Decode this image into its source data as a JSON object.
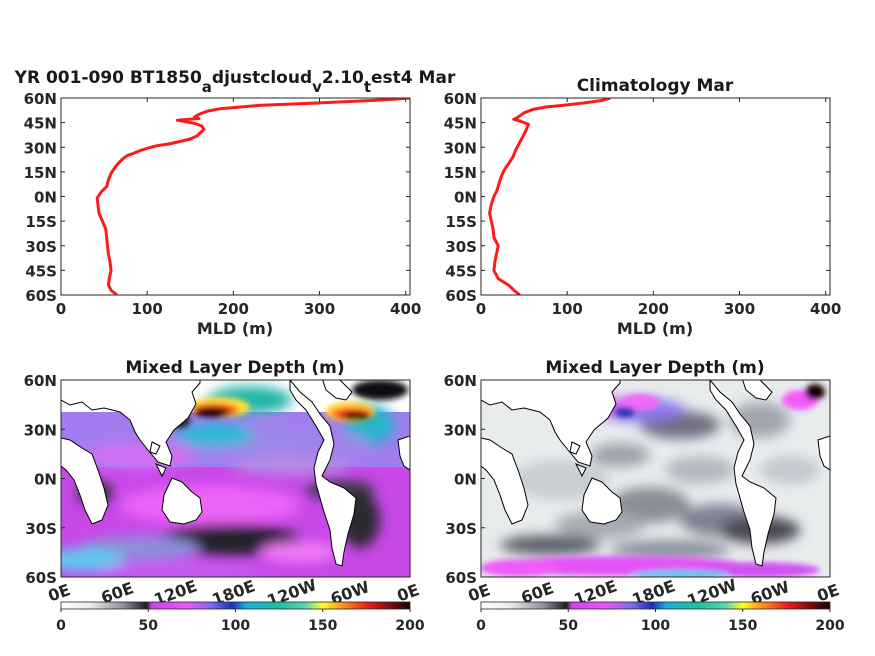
{
  "colors": {
    "profile_line": "#ff1a1a",
    "axis": "#262626",
    "land": "#ffffff"
  },
  "chart_data": [
    {
      "type": "line",
      "title_parts": [
        "YR 001-090 BT1850",
        "a",
        "djustcloud",
        "v",
        "2.10",
        "t",
        "est4 Mar"
      ],
      "xlabel": "MLD (m)",
      "ylabel": "",
      "xlim": [
        0,
        405
      ],
      "ylim": [
        -60,
        60
      ],
      "xticks": [
        0,
        100,
        200,
        300,
        400
      ],
      "yticks": [
        "60S",
        "45S",
        "30S",
        "15S",
        "0N",
        "15N",
        "30N",
        "45N",
        "60N"
      ],
      "series": [
        {
          "x": [
            65,
            58,
            55,
            56,
            58,
            57,
            55,
            54,
            53,
            52,
            48,
            44,
            42,
            47,
            53,
            55,
            58,
            63,
            68,
            72,
            77,
            83,
            92,
            101,
            112,
            125,
            138,
            150,
            158,
            162,
            166,
            163,
            155,
            145,
            135,
            160,
            155,
            160,
            170,
            185,
            230,
            300,
            360,
            395,
            405,
            400
          ],
          "y": [
            -60,
            -57,
            -54,
            -50,
            -45,
            -40,
            -35,
            -30,
            -25,
            -20,
            -15,
            -10,
            -1,
            3,
            6,
            10,
            14,
            18,
            21,
            23,
            25,
            26,
            28,
            29.5,
            31,
            32,
            33.5,
            35,
            37,
            39,
            41,
            43,
            44.5,
            45.5,
            46.5,
            47.5,
            48.5,
            50,
            52,
            53.5,
            55.5,
            57,
            58.5,
            59.5,
            60,
            60
          ]
        }
      ]
    },
    {
      "type": "line",
      "title": "Climatology Mar",
      "xlabel": "MLD (m)",
      "ylabel": "",
      "xlim": [
        0,
        405
      ],
      "ylim": [
        -60,
        60
      ],
      "xticks": [
        0,
        100,
        200,
        300,
        400
      ],
      "yticks": [
        "60S",
        "45S",
        "30S",
        "15S",
        "0N",
        "15N",
        "30N",
        "45N",
        "60N"
      ],
      "series": [
        {
          "x": [
            45,
            38,
            32,
            20,
            15,
            16,
            18,
            20,
            15,
            14,
            12,
            10,
            12,
            15,
            18,
            20,
            22,
            25,
            28,
            32,
            37,
            40,
            44,
            48,
            52,
            55,
            45,
            38,
            42,
            50,
            60,
            75,
            95,
            120,
            140,
            150
          ],
          "y": [
            -60,
            -57,
            -54,
            -50,
            -45,
            -40,
            -35,
            -30,
            -25,
            -20,
            -15,
            -10,
            -5,
            0,
            3,
            6,
            10,
            14,
            17,
            20,
            24,
            28,
            32,
            36,
            40,
            44,
            46,
            47,
            48,
            51,
            53,
            54.5,
            55.5,
            57,
            58.5,
            60
          ]
        }
      ]
    },
    {
      "type": "heatmap",
      "title": "Mixed Layer Depth (m)",
      "xticks": [
        "0E",
        "60E",
        "120E",
        "180E",
        "120W",
        "60W",
        "0E"
      ],
      "yticks": [
        "60S",
        "30S",
        "0N",
        "30N",
        "60N"
      ],
      "colorbar": {
        "min": 0,
        "max": 200,
        "ticks": [
          0,
          50,
          100,
          150,
          200
        ]
      }
    },
    {
      "type": "heatmap",
      "title": "Mixed Layer Depth (m)",
      "xticks": [
        "0E",
        "60E",
        "120E",
        "180E",
        "120W",
        "60W",
        "0E"
      ],
      "yticks": [
        "60S",
        "30S",
        "0N",
        "30N",
        "60N"
      ],
      "colorbar": {
        "min": 0,
        "max": 200,
        "ticks": [
          0,
          50,
          100,
          150,
          200
        ]
      }
    }
  ]
}
